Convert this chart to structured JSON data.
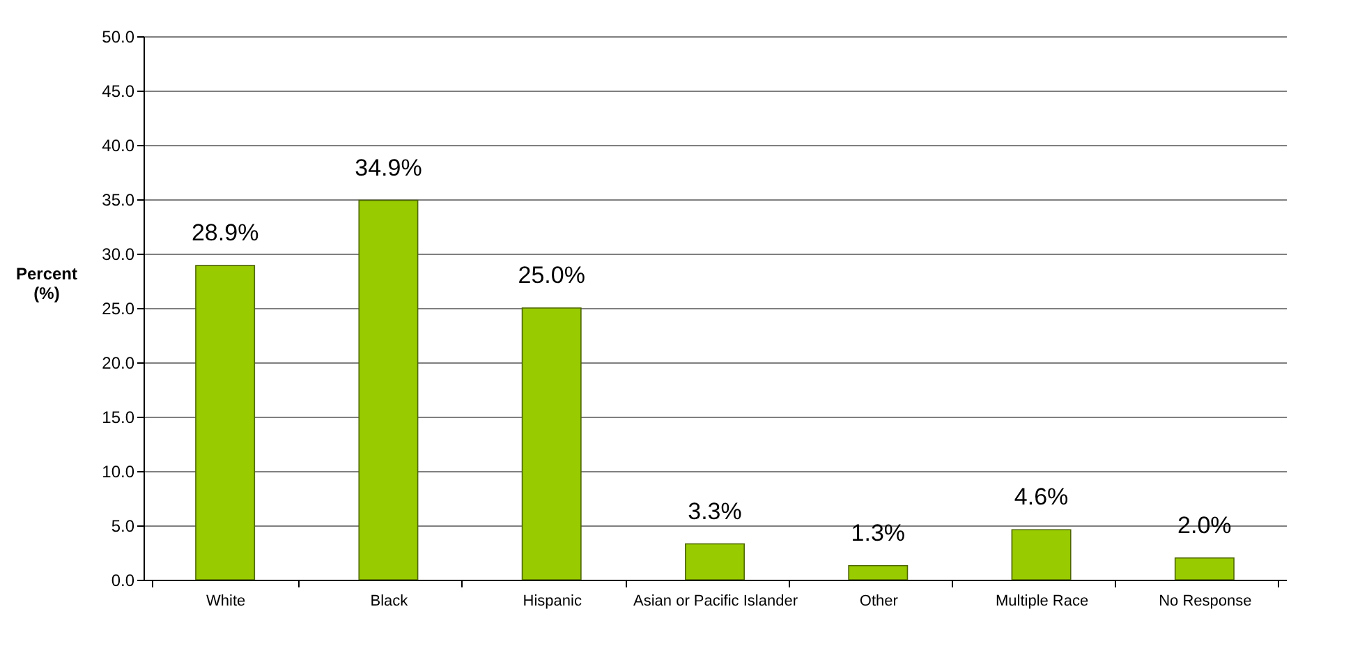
{
  "chart_data": {
    "type": "bar",
    "ylabel": "Percent (%)",
    "categories": [
      "White",
      "Black",
      "Hispanic",
      "Asian or Pacific Islander",
      "Other",
      "Multiple Race",
      "No Response"
    ],
    "values": [
      28.9,
      34.9,
      25.0,
      3.3,
      1.3,
      4.6,
      2.0
    ],
    "value_labels": [
      "28.9%",
      "34.9%",
      "25.0%",
      "3.3%",
      "1.3%",
      "4.6%",
      "2.0%"
    ],
    "color": "#99cc00",
    "ylim": [
      0,
      50
    ],
    "yticks": [
      {
        "value": 0,
        "label": "0.0"
      },
      {
        "value": 5,
        "label": "5.0"
      },
      {
        "value": 10,
        "label": "10.0"
      },
      {
        "value": 15,
        "label": "15.0"
      },
      {
        "value": 20,
        "label": "20.0"
      },
      {
        "value": 25,
        "label": "25.0"
      },
      {
        "value": 30,
        "label": "30.0"
      },
      {
        "value": 35,
        "label": "35.0"
      },
      {
        "value": 40,
        "label": "40.0"
      },
      {
        "value": 45,
        "label": "45.0"
      },
      {
        "value": 50,
        "label": "50.0"
      }
    ],
    "grid": "y"
  }
}
